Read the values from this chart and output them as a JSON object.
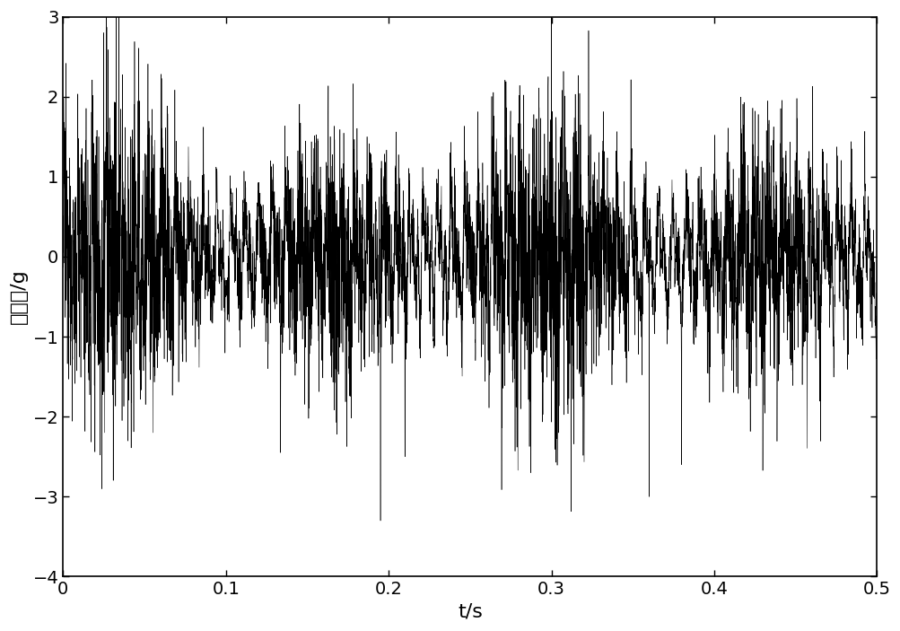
{
  "xlim": [
    0,
    0.5
  ],
  "ylim": [
    -4,
    3
  ],
  "yticks": [
    -4,
    -3,
    -2,
    -1,
    0,
    1,
    2,
    3
  ],
  "xticks": [
    0,
    0.1,
    0.2,
    0.3,
    0.4,
    0.5
  ],
  "xlabel": "t/s",
  "ylabel": "加速度/g",
  "line_color": "#000000",
  "line_width": 0.4,
  "background_color": "#ffffff",
  "sample_rate": 12000,
  "duration": 0.5,
  "seed": 12345,
  "noise_amplitude": 0.55,
  "fault_freq": 118.0,
  "fault_amplitude": 0.45,
  "mod_freq1": 7.5,
  "mod_amp1": 0.55,
  "mod_freq2": 3.8,
  "mod_amp2": 0.25,
  "xlabel_fontsize": 16,
  "ylabel_fontsize": 16,
  "tick_fontsize": 14
}
